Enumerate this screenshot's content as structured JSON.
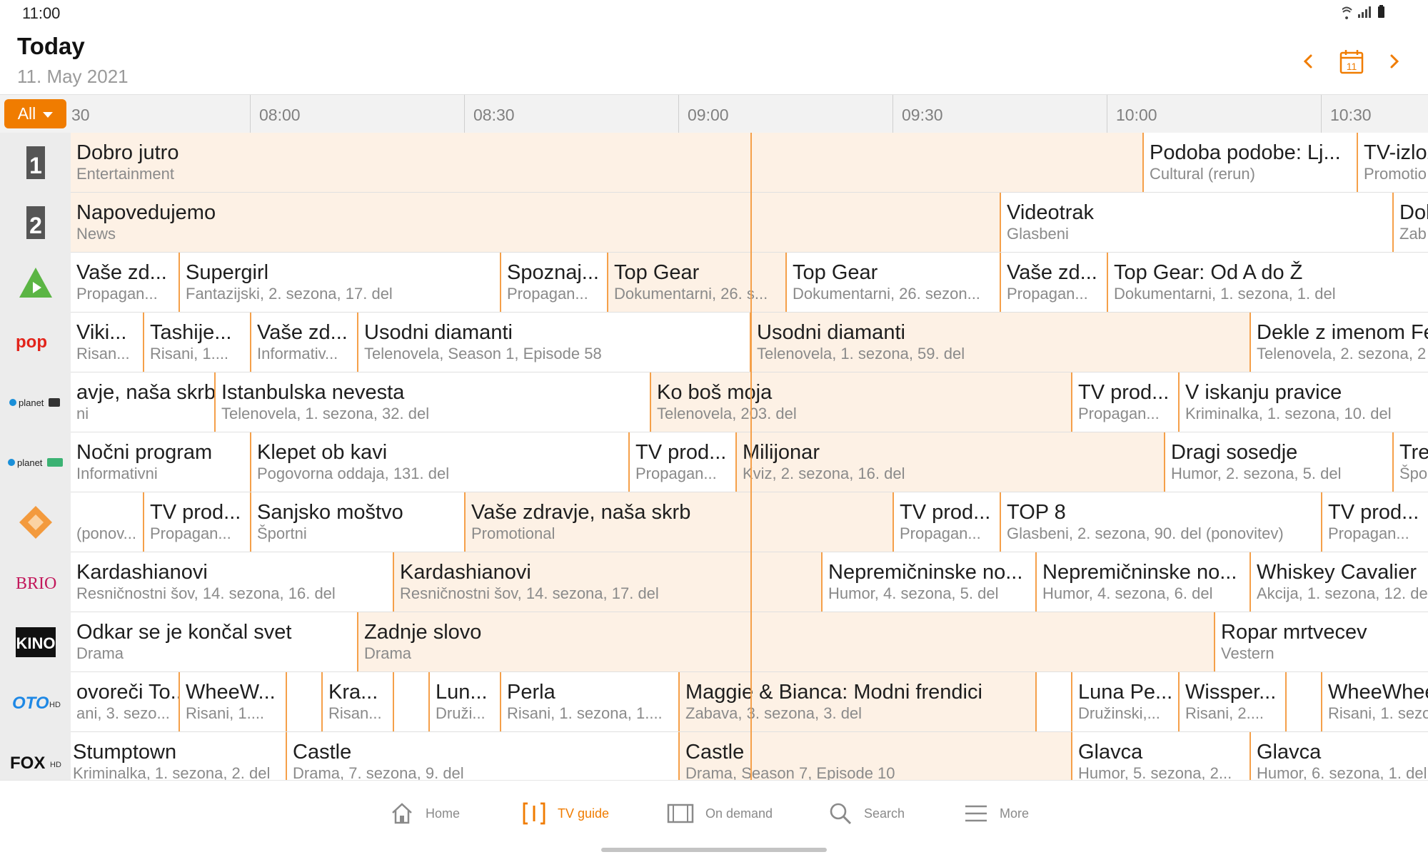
{
  "status": {
    "time": "11:00",
    "icons": "wifi signal battery"
  },
  "header": {
    "title": "Today",
    "date": "11. May 2021",
    "calendar_day": "11",
    "prev_icon": "‹",
    "next_icon": "›"
  },
  "filter": {
    "label": "All"
  },
  "timeline": [
    "30",
    "08:00",
    "08:30",
    "09:00",
    "09:30",
    "10:00",
    "10:30"
  ],
  "channels": [
    {
      "name": "TV SLO 1 HD",
      "logo_text": "1"
    },
    {
      "name": "TV SLO 2 HD",
      "logo_text": "2"
    },
    {
      "name": "Kanal A",
      "logo_text": ""
    },
    {
      "name": "POP TV HD",
      "logo_text": "pop"
    },
    {
      "name": "Planet HD",
      "logo_text": "planet"
    },
    {
      "name": "Planet 2 HD",
      "logo_text": "planet 2"
    },
    {
      "name": "Kanal 3",
      "logo_text": ""
    },
    {
      "name": "BRIO HD",
      "logo_text": "BRIO"
    },
    {
      "name": "KINO",
      "logo_text": "KINO"
    },
    {
      "name": "OTO HD",
      "logo_text": "OTO"
    },
    {
      "name": "FOX HD",
      "logo_text": "FOX"
    }
  ],
  "rows": [
    [
      {
        "title": "Dobro jutro",
        "sub": "Entertainment",
        "live": true
      },
      {
        "title": "Podoba podobe: Lj...",
        "sub": "Cultural (rerun)",
        "live": false
      },
      {
        "title": "TV-izlož",
        "sub": "Promotio",
        "live": false
      }
    ],
    [
      {
        "title": "Napovedujemo",
        "sub": "News",
        "live": true
      },
      {
        "title": "Videotrak",
        "sub": "Glasbeni",
        "live": false
      },
      {
        "title": "Dob",
        "sub": "Zab",
        "live": false
      }
    ],
    [
      {
        "title": "Vaše zd...",
        "sub": "Propagan...",
        "live": false
      },
      {
        "title": "Supergirl",
        "sub": "Fantazijski, 2. sezona, 17. del",
        "live": false
      },
      {
        "title": "Spoznaj...",
        "sub": "Propagan...",
        "live": false
      },
      {
        "title": "Top Gear",
        "sub": "Dokumentarni, 26. s...",
        "live": true
      },
      {
        "title": "Top Gear",
        "sub": "Dokumentarni, 26. sezon...",
        "live": false
      },
      {
        "title": "Vaše zd...",
        "sub": "Propagan...",
        "live": false
      },
      {
        "title": "Top Gear: Od A do Ž",
        "sub": "Dokumentarni, 1. sezona, 1. del",
        "live": false
      }
    ],
    [
      {
        "title": "Viki...",
        "sub": "Risan...",
        "live": false
      },
      {
        "title": "Tashije...",
        "sub": "Risani, 1....",
        "live": false
      },
      {
        "title": "Vaše zd...",
        "sub": "Informativ...",
        "live": false
      },
      {
        "title": "Usodni diamanti",
        "sub": "Telenovela, Season 1, Episode 58",
        "live": false
      },
      {
        "title": "Usodni diamanti",
        "sub": "Telenovela, 1. sezona, 59. del",
        "live": true
      },
      {
        "title": "Dekle z imenom Fe",
        "sub": "Telenovela, 2. sezona, 2",
        "live": false
      }
    ],
    [
      {
        "title": "avje, naša skrb",
        "sub": "ni",
        "live": false
      },
      {
        "title": "Istanbulska nevesta",
        "sub": "Telenovela, 1. sezona, 32. del",
        "live": false
      },
      {
        "title": "Ko boš moja",
        "sub": "Telenovela, 203. del",
        "live": true
      },
      {
        "title": "TV prod...",
        "sub": "Propagan...",
        "live": false
      },
      {
        "title": "V iskanju pravice",
        "sub": "Kriminalka, 1. sezona, 10. del",
        "live": false
      }
    ],
    [
      {
        "title": "Nočni program",
        "sub": "Informativni",
        "live": false
      },
      {
        "title": "Klepet ob kavi",
        "sub": "Pogovorna oddaja, 131. del",
        "live": false
      },
      {
        "title": "TV prod...",
        "sub": "Propagan...",
        "live": false
      },
      {
        "title": "Milijonar",
        "sub": "Kviz, 2. sezona, 16. del",
        "live": true
      },
      {
        "title": "Dragi sosedje",
        "sub": "Humor, 2. sezona, 5. del",
        "live": false
      },
      {
        "title": "Tre",
        "sub": "Špo",
        "live": false
      }
    ],
    [
      {
        "title": "",
        "sub": "(ponov...",
        "live": false
      },
      {
        "title": "TV prod...",
        "sub": "Propagan...",
        "live": false
      },
      {
        "title": "Sanjsko moštvo",
        "sub": "Športni",
        "live": false
      },
      {
        "title": "Vaše zdravje, naša skrb",
        "sub": "Promotional",
        "live": true
      },
      {
        "title": "TV prod...",
        "sub": "Propagan...",
        "live": false
      },
      {
        "title": "TOP 8",
        "sub": "Glasbeni, 2. sezona, 90. del (ponovitev)",
        "live": false
      },
      {
        "title": "TV prod...",
        "sub": "Propagan...",
        "live": false
      }
    ],
    [
      {
        "title": "Kardashianovi",
        "sub": "Resničnostni šov, 14. sezona, 16. del",
        "live": false
      },
      {
        "title": "Kardashianovi",
        "sub": "Resničnostni šov, 14. sezona, 17. del",
        "live": true
      },
      {
        "title": "Nepremičninske no...",
        "sub": "Humor, 4. sezona, 5. del",
        "live": false
      },
      {
        "title": "Nepremičninske no...",
        "sub": "Humor, 4. sezona, 6. del",
        "live": false
      },
      {
        "title": "Whiskey Cavalier",
        "sub": "Akcija, 1. sezona, 12. de",
        "live": false
      }
    ],
    [
      {
        "title": "Odkar se je končal svet",
        "sub": "Drama",
        "live": false
      },
      {
        "title": "Zadnje slovo",
        "sub": "Drama",
        "live": true
      },
      {
        "title": "Ropar mrtvecev",
        "sub": "Vestern",
        "live": false
      }
    ],
    [
      {
        "title": "ovoreči To...",
        "sub": "ani, 3. sezo...",
        "live": false
      },
      {
        "title": "WheeW...",
        "sub": "Risani, 1....",
        "live": false
      },
      {
        "title": "",
        "sub": "",
        "live": false
      },
      {
        "title": "Kra...",
        "sub": "Risan...",
        "live": false
      },
      {
        "title": "",
        "sub": "",
        "live": false
      },
      {
        "title": "Lun...",
        "sub": "Druži...",
        "live": false
      },
      {
        "title": "Perla",
        "sub": "Risani, 1. sezona, 1....",
        "live": false
      },
      {
        "title": "Maggie & Bianca: Modni frendici",
        "sub": "Zabava, 3. sezona, 3. del",
        "live": true
      },
      {
        "title": "",
        "sub": "",
        "live": false
      },
      {
        "title": "Luna Pe...",
        "sub": "Družinski,...",
        "live": false
      },
      {
        "title": "Wissper...",
        "sub": "Risani, 2....",
        "live": false
      },
      {
        "title": "",
        "sub": "",
        "live": false
      },
      {
        "title": "WheeWhee",
        "sub": "Risani, 1. sezo",
        "live": false
      }
    ],
    [
      {
        "title": "Stumptown",
        "sub": "Kriminalka, 1. sezona, 2. del",
        "live": false
      },
      {
        "title": "Castle",
        "sub": "Drama, 7. sezona, 9. del",
        "live": false
      },
      {
        "title": "Castle",
        "sub": "Drama, Season 7, Episode 10",
        "live": true
      },
      {
        "title": "Glavca",
        "sub": "Humor, 5. sezona, 2...",
        "live": false
      },
      {
        "title": "Glavca",
        "sub": "Humor, 6. sezona, 1. del",
        "live": false
      }
    ]
  ],
  "nav": [
    {
      "label": "Home",
      "icon": "home-icon"
    },
    {
      "label": "TV guide",
      "icon": "tv-guide-icon"
    },
    {
      "label": "On demand",
      "icon": "film-icon"
    },
    {
      "label": "Search",
      "icon": "search-icon"
    },
    {
      "label": "More",
      "icon": "menu-icon"
    }
  ],
  "colors": {
    "accent": "#f07c00",
    "live_bg": "#fdf1e5",
    "divider": "#f5a04a"
  }
}
